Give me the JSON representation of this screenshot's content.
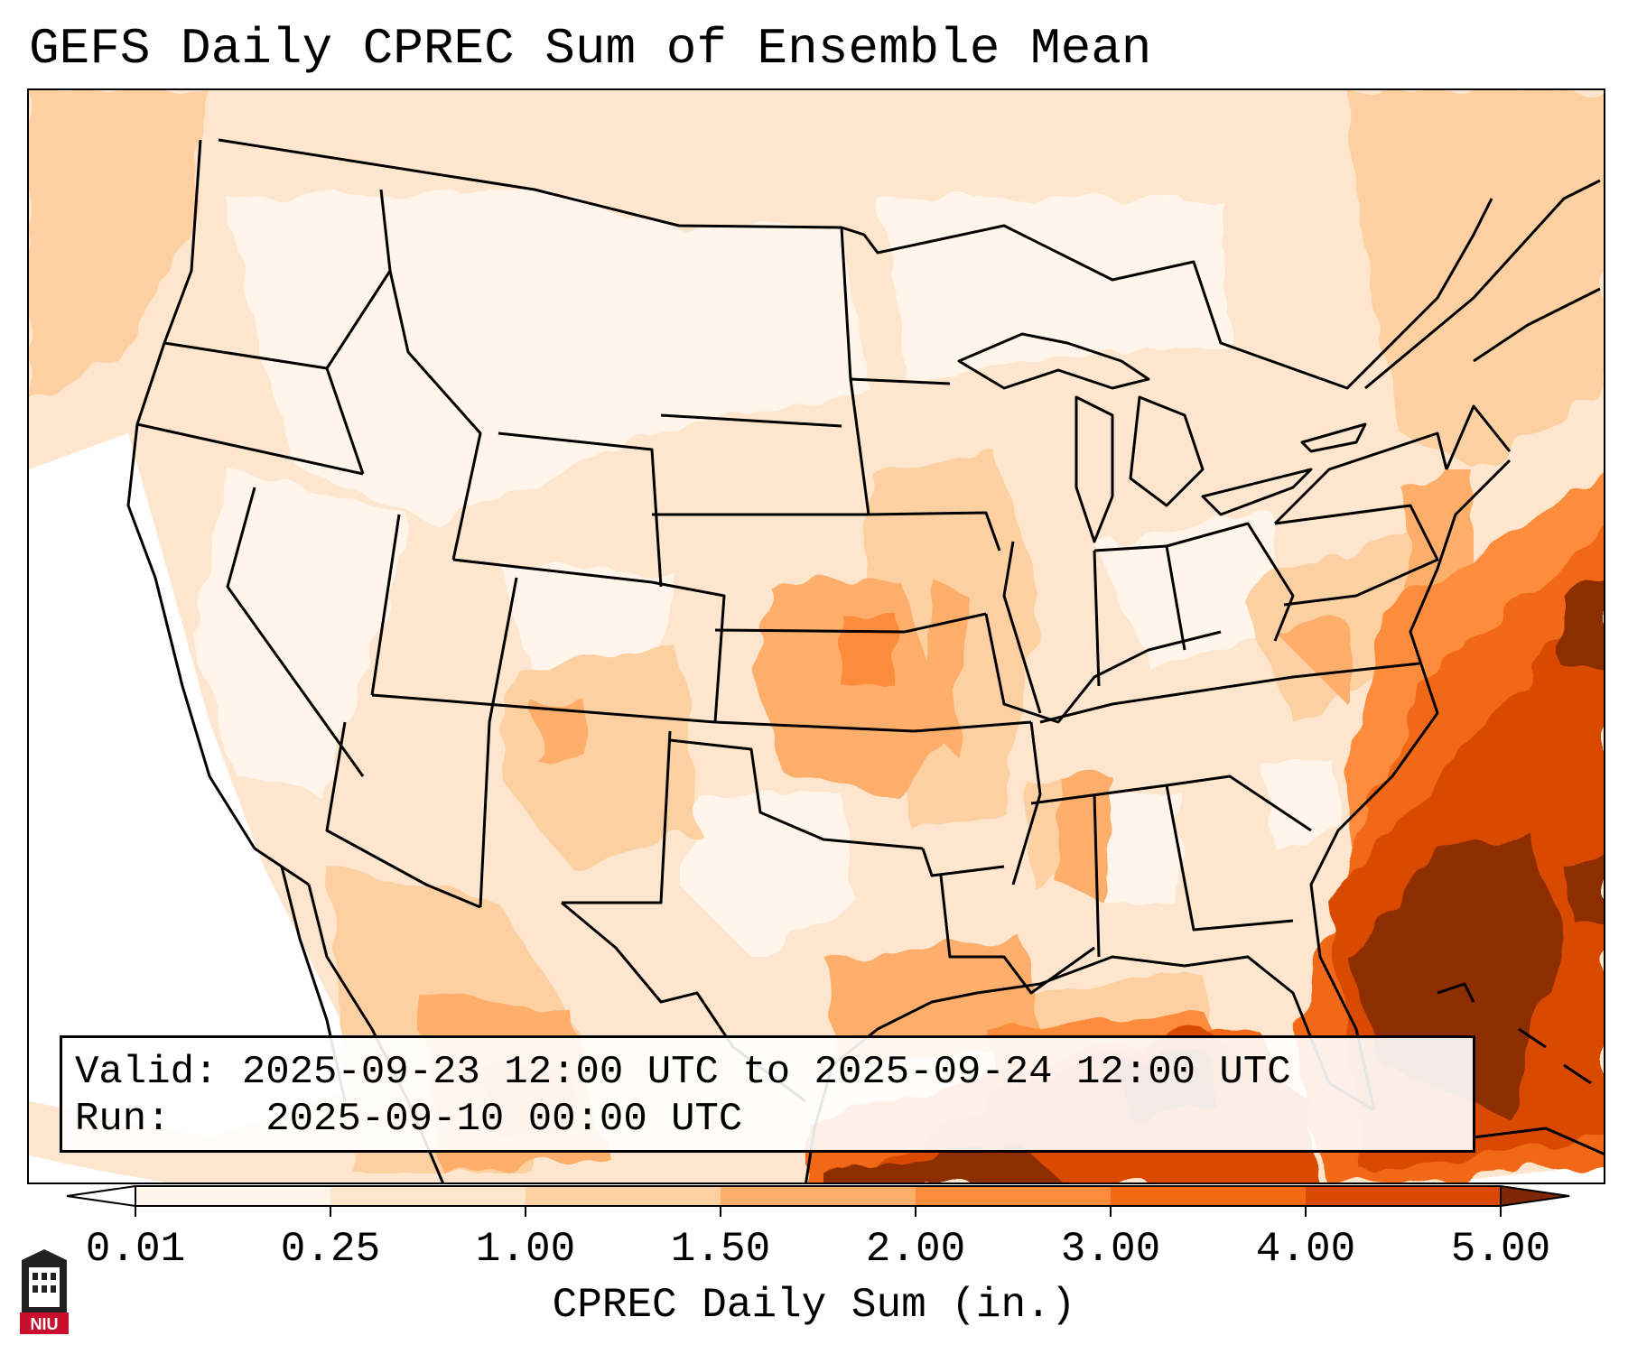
{
  "title": "GEFS Daily CPREC Sum of Ensemble Mean",
  "info": {
    "valid_label": "Valid:",
    "valid_value": "2025-09-23 12:00 UTC to 2025-09-24 12:00 UTC",
    "run_label": "Run:",
    "run_value": "2025-09-10 00:00 UTC"
  },
  "colorbar": {
    "label": "CPREC Daily Sum (in.)",
    "ticks": [
      "0.01",
      "0.25",
      "1.00",
      "1.50",
      "2.00",
      "3.00",
      "4.00",
      "5.00"
    ],
    "colors": [
      "#fff5eb",
      "#fee6ce",
      "#fdd0a2",
      "#fdae6b",
      "#fd8d3c",
      "#f16913",
      "#d94801",
      "#8c2d04"
    ],
    "under_color": "#ffffff",
    "over_color": "#7f2704",
    "extend": "both"
  },
  "map": {
    "projection": "Lambert conformal, CONUS",
    "features": [
      "state-borders",
      "country-borders",
      "coastlines"
    ],
    "precip_regions": [
      {
        "area": "Southeast US Atlantic coast / Florida",
        "level": "4.00-5.00+"
      },
      {
        "area": "Gulf of Mexico",
        "level": "3.00-5.00"
      },
      {
        "area": "Western Atlantic / Bahamas",
        "level": "4.00-5.00+"
      },
      {
        "area": "Kansas / Oklahoma / Missouri",
        "level": "1.00-2.00"
      },
      {
        "area": "Western Mexico",
        "level": "1.00-3.00"
      },
      {
        "area": "Northeast US",
        "level": "1.00-1.50"
      },
      {
        "area": "Western US / Northern Plains",
        "level": "0.01-1.00"
      }
    ]
  },
  "logo": {
    "text": "NIU"
  }
}
